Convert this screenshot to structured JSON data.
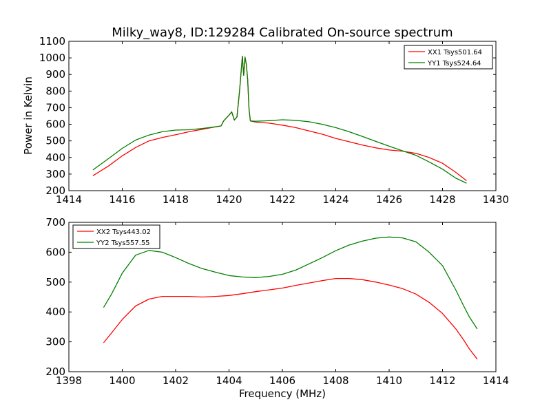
{
  "title": "Milky_way8, ID:129284 Calibrated On-source spectrum",
  "colors": {
    "xx": "#ff0000",
    "yy": "#008000",
    "axis": "#000000"
  },
  "chart_data": [
    {
      "type": "line",
      "ylabel": "Power in Kelvin",
      "xlabel": "",
      "xlim": [
        1414,
        1430
      ],
      "ylim": [
        200,
        1100
      ],
      "xticks": [
        1414,
        1416,
        1418,
        1420,
        1422,
        1424,
        1426,
        1428,
        1430
      ],
      "yticks": [
        200,
        300,
        400,
        500,
        600,
        700,
        800,
        900,
        1000,
        1100
      ],
      "grid": false,
      "legend_position": "top-right",
      "series": [
        {
          "name": "XX1 Tsys501.64",
          "color": "#ff0000",
          "points": [
            [
              1414.9,
              290
            ],
            [
              1415.5,
              350
            ],
            [
              1416,
              410
            ],
            [
              1416.5,
              460
            ],
            [
              1417,
              500
            ],
            [
              1417.5,
              520
            ],
            [
              1418,
              537
            ],
            [
              1418.5,
              555
            ],
            [
              1419,
              570
            ],
            [
              1419.5,
              585
            ],
            [
              1419.7,
              590
            ],
            [
              1419.8,
              620
            ],
            [
              1420,
              655
            ],
            [
              1420.1,
              675
            ],
            [
              1420.2,
              625
            ],
            [
              1420.3,
              645
            ],
            [
              1420.4,
              810
            ],
            [
              1420.5,
              1010
            ],
            [
              1420.55,
              895
            ],
            [
              1420.6,
              1005
            ],
            [
              1420.65,
              960
            ],
            [
              1420.7,
              870
            ],
            [
              1420.75,
              690
            ],
            [
              1420.8,
              620
            ],
            [
              1421,
              613
            ],
            [
              1421.5,
              607
            ],
            [
              1422,
              595
            ],
            [
              1422.5,
              580
            ],
            [
              1423,
              560
            ],
            [
              1423.5,
              540
            ],
            [
              1424,
              515
            ],
            [
              1424.5,
              495
            ],
            [
              1425,
              475
            ],
            [
              1425.5,
              458
            ],
            [
              1426,
              445
            ],
            [
              1426.5,
              438
            ],
            [
              1427,
              425
            ],
            [
              1427.5,
              400
            ],
            [
              1428,
              365
            ],
            [
              1428.5,
              310
            ],
            [
              1428.9,
              260
            ]
          ]
        },
        {
          "name": "YY1 Tsys524.64",
          "color": "#008000",
          "points": [
            [
              1414.9,
              325
            ],
            [
              1415.5,
              395
            ],
            [
              1416,
              455
            ],
            [
              1416.5,
              505
            ],
            [
              1417,
              535
            ],
            [
              1417.5,
              555
            ],
            [
              1418,
              565
            ],
            [
              1418.5,
              567
            ],
            [
              1419,
              575
            ],
            [
              1419.5,
              585
            ],
            [
              1419.7,
              590
            ],
            [
              1419.8,
              620
            ],
            [
              1420,
              655
            ],
            [
              1420.1,
              675
            ],
            [
              1420.2,
              625
            ],
            [
              1420.3,
              645
            ],
            [
              1420.4,
              810
            ],
            [
              1420.5,
              1010
            ],
            [
              1420.55,
              895
            ],
            [
              1420.6,
              1005
            ],
            [
              1420.65,
              960
            ],
            [
              1420.7,
              870
            ],
            [
              1420.75,
              690
            ],
            [
              1420.8,
              620
            ],
            [
              1421,
              618
            ],
            [
              1421.5,
              622
            ],
            [
              1422,
              627
            ],
            [
              1422.5,
              624
            ],
            [
              1423,
              615
            ],
            [
              1423.5,
              600
            ],
            [
              1424,
              580
            ],
            [
              1424.5,
              555
            ],
            [
              1425,
              527
            ],
            [
              1425.5,
              497
            ],
            [
              1426,
              468
            ],
            [
              1426.5,
              440
            ],
            [
              1427,
              413
            ],
            [
              1427.5,
              373
            ],
            [
              1428,
              330
            ],
            [
              1428.5,
              275
            ],
            [
              1428.9,
              245
            ]
          ]
        }
      ]
    },
    {
      "type": "line",
      "ylabel": "",
      "xlabel": "Frequency (MHz)",
      "xlim": [
        1398,
        1414
      ],
      "ylim": [
        200,
        700
      ],
      "xticks": [
        1398,
        1400,
        1402,
        1404,
        1406,
        1408,
        1410,
        1412,
        1414
      ],
      "yticks": [
        200,
        300,
        400,
        500,
        600,
        700
      ],
      "grid": false,
      "legend_position": "top-left",
      "series": [
        {
          "name": "XX2 Tsys443.02",
          "color": "#ff0000",
          "points": [
            [
              1399.3,
              297
            ],
            [
              1399.6,
              330
            ],
            [
              1400,
              375
            ],
            [
              1400.5,
              420
            ],
            [
              1401,
              443
            ],
            [
              1401.5,
              452
            ],
            [
              1402,
              452
            ],
            [
              1402.5,
              452
            ],
            [
              1403,
              450
            ],
            [
              1403.5,
              452
            ],
            [
              1404,
              455
            ],
            [
              1404.5,
              461
            ],
            [
              1405,
              468
            ],
            [
              1405.5,
              474
            ],
            [
              1406,
              480
            ],
            [
              1406.5,
              489
            ],
            [
              1407,
              497
            ],
            [
              1407.5,
              505
            ],
            [
              1408,
              512
            ],
            [
              1408.5,
              512
            ],
            [
              1409,
              508
            ],
            [
              1409.5,
              500
            ],
            [
              1410,
              490
            ],
            [
              1410.5,
              478
            ],
            [
              1411,
              460
            ],
            [
              1411.5,
              432
            ],
            [
              1412,
              395
            ],
            [
              1412.5,
              343
            ],
            [
              1412.8,
              305
            ],
            [
              1413,
              277
            ],
            [
              1413.3,
              242
            ]
          ]
        },
        {
          "name": "YY2 Tsys557.55",
          "color": "#008000",
          "points": [
            [
              1399.3,
              415
            ],
            [
              1399.6,
              460
            ],
            [
              1400,
              530
            ],
            [
              1400.5,
              590
            ],
            [
              1401,
              606
            ],
            [
              1401.5,
              600
            ],
            [
              1402,
              582
            ],
            [
              1402.5,
              562
            ],
            [
              1403,
              545
            ],
            [
              1403.5,
              533
            ],
            [
              1404,
              522
            ],
            [
              1404.5,
              517
            ],
            [
              1405,
              515
            ],
            [
              1405.5,
              519
            ],
            [
              1406,
              526
            ],
            [
              1406.5,
              540
            ],
            [
              1407,
              561
            ],
            [
              1407.5,
              582
            ],
            [
              1408,
              605
            ],
            [
              1408.5,
              624
            ],
            [
              1409,
              637
            ],
            [
              1409.5,
              647
            ],
            [
              1410,
              651
            ],
            [
              1410.5,
              648
            ],
            [
              1411,
              635
            ],
            [
              1411.5,
              600
            ],
            [
              1412,
              555
            ],
            [
              1412.5,
              473
            ],
            [
              1412.8,
              419
            ],
            [
              1413,
              384
            ],
            [
              1413.3,
              343
            ]
          ]
        }
      ]
    }
  ]
}
